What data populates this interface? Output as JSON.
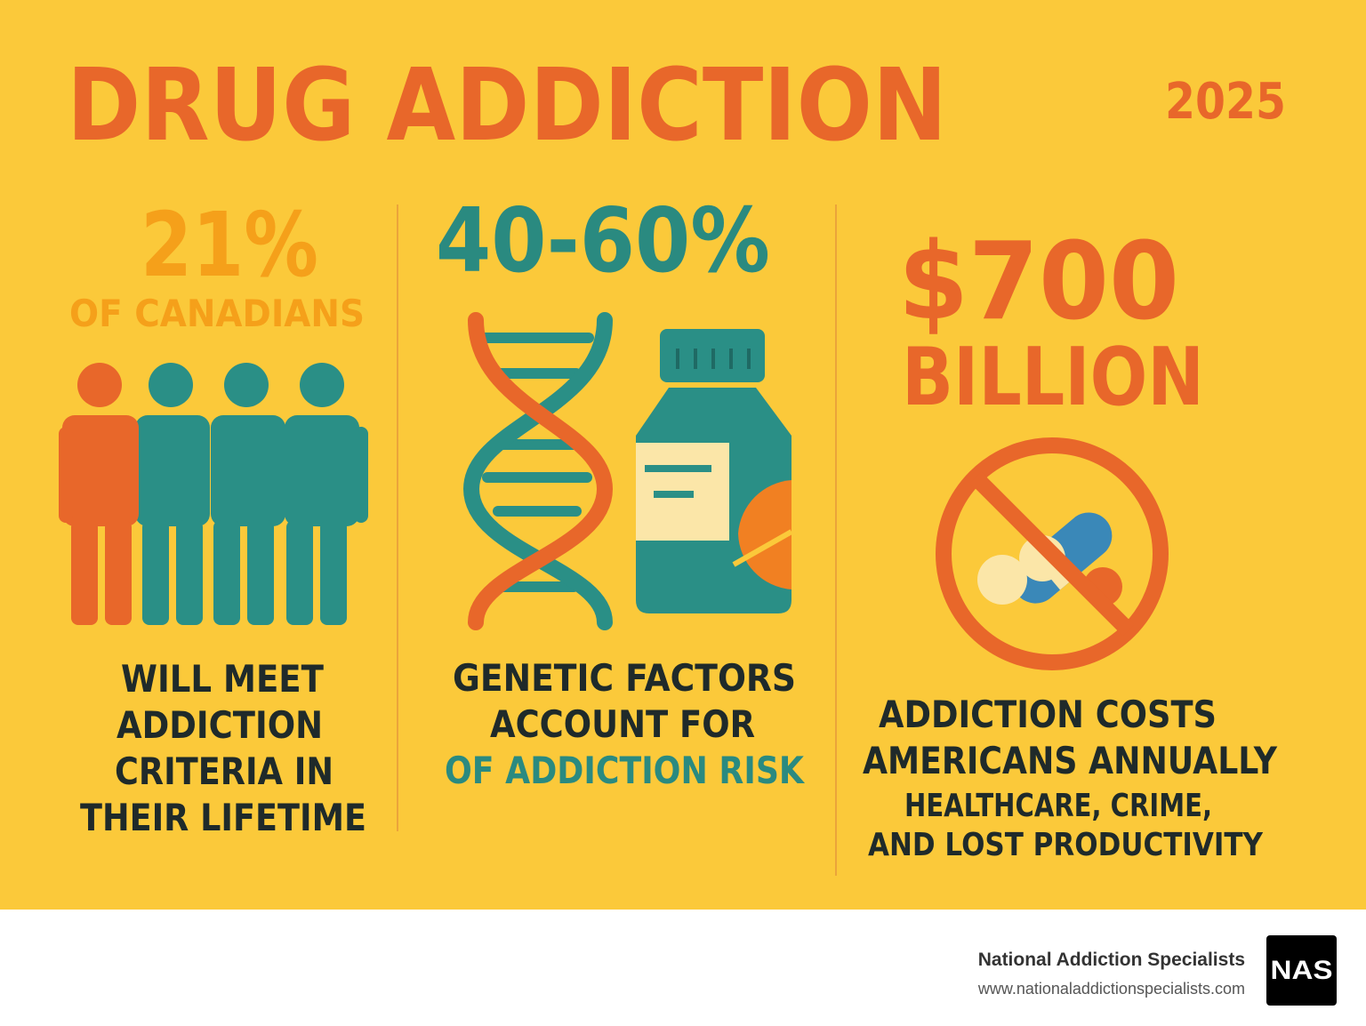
{
  "header": {
    "title": "DRUG ADDICTION",
    "year": "2025"
  },
  "stats": [
    {
      "value": "21%",
      "label": "OF CANADIANS",
      "lines": [
        "WILL MEET",
        "ADDICTION",
        "CRITERIA IN",
        "THEIR LIFETIME"
      ]
    },
    {
      "value": "40-60%",
      "lines": [
        "GENETIC FACTORS",
        "ACCOUNT FOR",
        "OF ADDICTION RISK"
      ]
    },
    {
      "value": "$700",
      "label": "BILLION",
      "lines": [
        "ADDICTION COSTS",
        "AMERICANS ANNUALLY"
      ],
      "sublines": [
        "HEALTHCARE, CRIME,",
        "AND LOST PRODUCTIVITY"
      ]
    }
  ],
  "footer": {
    "name": "National Addiction Specialists",
    "url": "www.nationaladdictionspecialists.com",
    "logo": "NAS"
  }
}
